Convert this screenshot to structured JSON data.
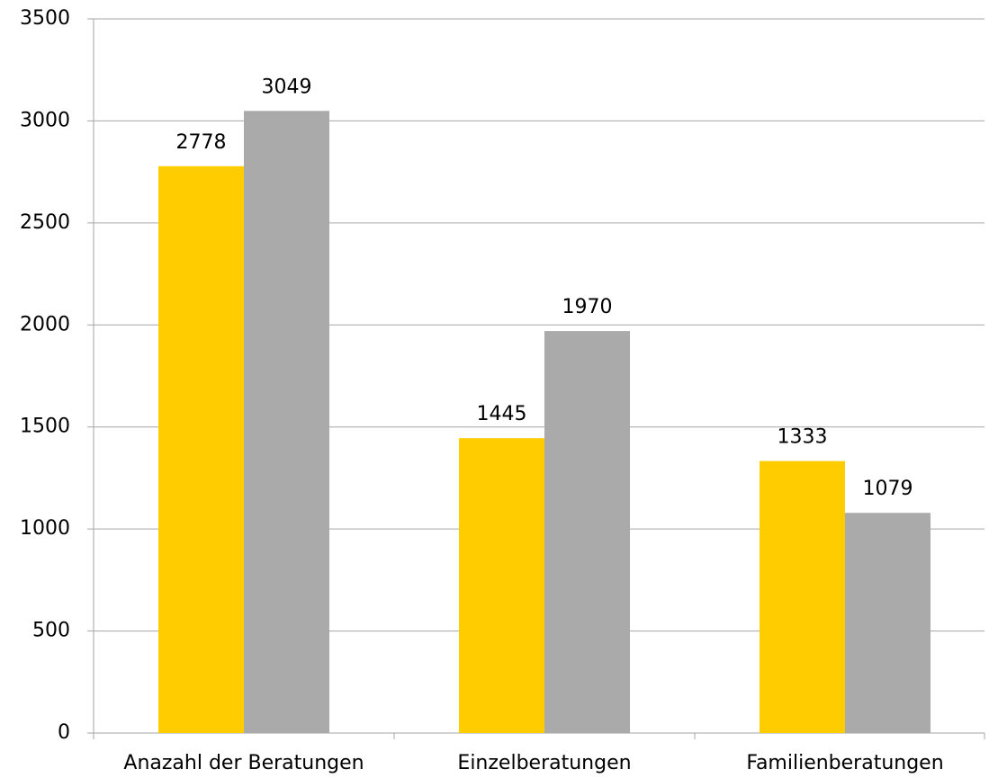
{
  "chart_data": {
    "type": "bar",
    "categories": [
      "Anazahl der Beratungen",
      "Einzelberatungen",
      "Familienberatungen"
    ],
    "series": [
      {
        "color": "#ffcc00",
        "values": [
          2778,
          1445,
          1333
        ]
      },
      {
        "color": "#aaaaaa",
        "values": [
          3049,
          1970,
          1079
        ]
      }
    ],
    "ylim": [
      0,
      3500
    ],
    "yticks": [
      0,
      500,
      1000,
      1500,
      2000,
      2500,
      3000,
      3500
    ],
    "grid": true
  }
}
